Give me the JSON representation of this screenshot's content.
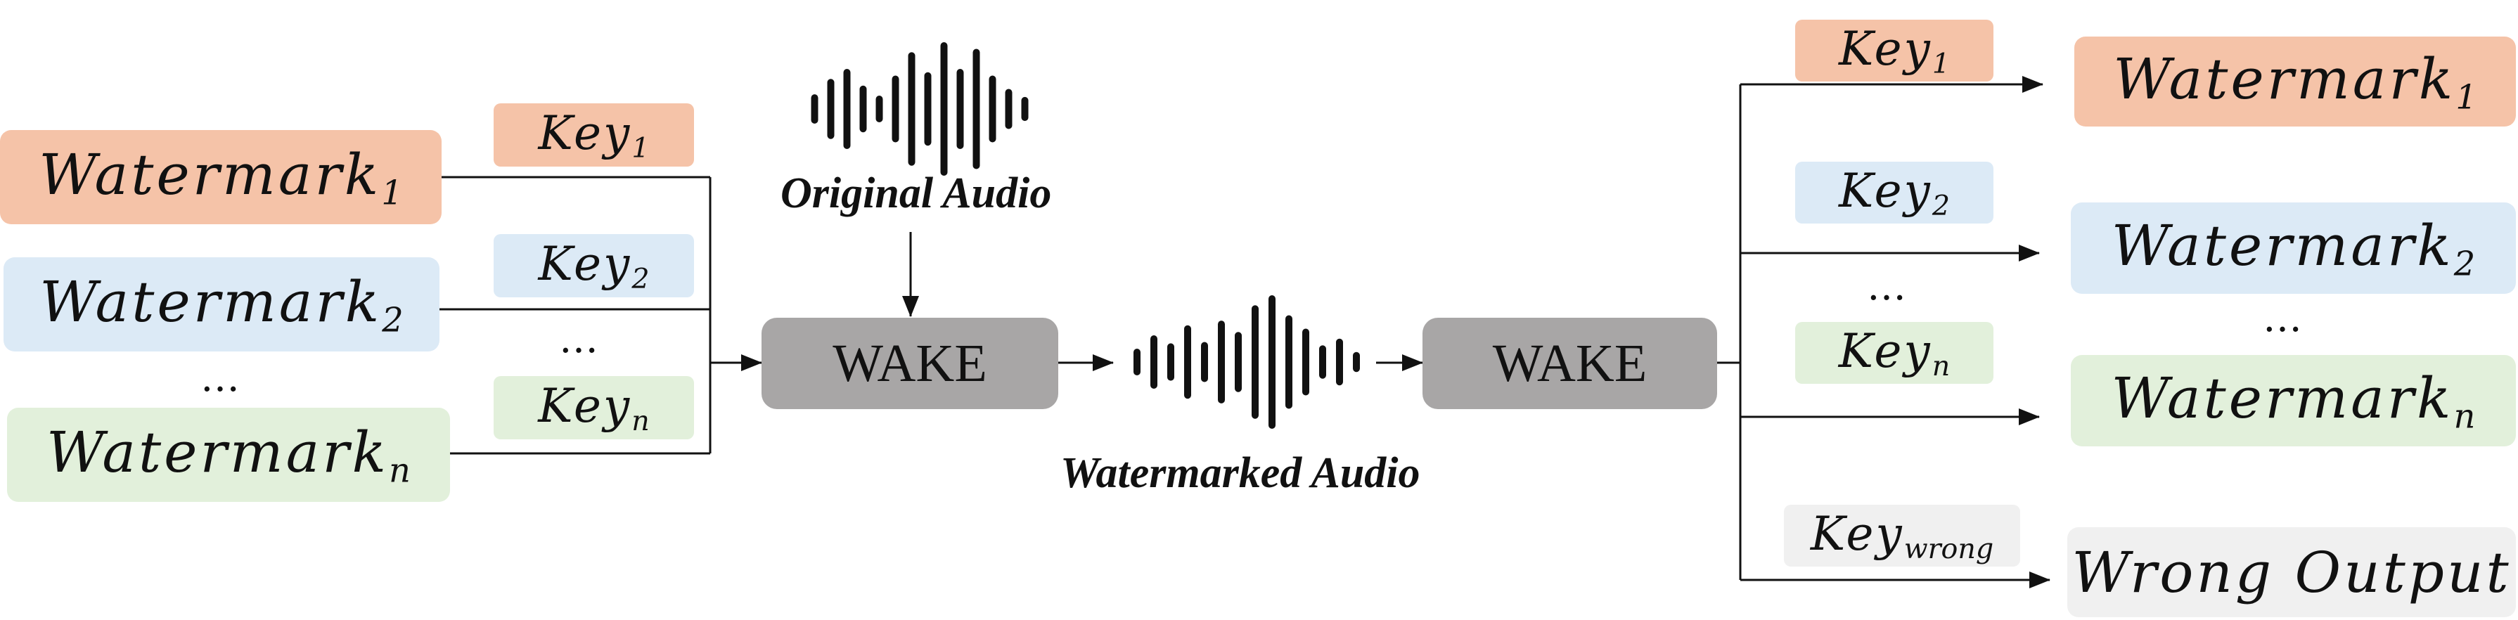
{
  "inputs": {
    "watermark_base": "Watermark",
    "watermark_1_sub": "1",
    "watermark_2_sub": "2",
    "watermark_n_sub": "n",
    "ellipsis": "…"
  },
  "keys": {
    "key_base": "Key",
    "key_1_sub": "1",
    "key_2_sub": "2",
    "key_n_sub": "n",
    "key_wrong_sub": "wrong",
    "ellipsis": "…"
  },
  "blocks": {
    "encoder_label": "WAKE",
    "decoder_label": "WAKE"
  },
  "captions": {
    "original_audio": "Original Audio",
    "watermarked_audio": "Watermarked Audio"
  },
  "outputs": {
    "watermark_base": "Watermark",
    "watermark_1_sub": "1",
    "watermark_2_sub": "2",
    "watermark_n_sub": "n",
    "ellipsis": "…",
    "wrong_output": "Wrong Output"
  },
  "colors": {
    "orange": "#f5c3a8",
    "blue": "#dceaf6",
    "green": "#e2f0db",
    "gray": "#f0f0f0",
    "wake_block": "#a8a6a6"
  }
}
